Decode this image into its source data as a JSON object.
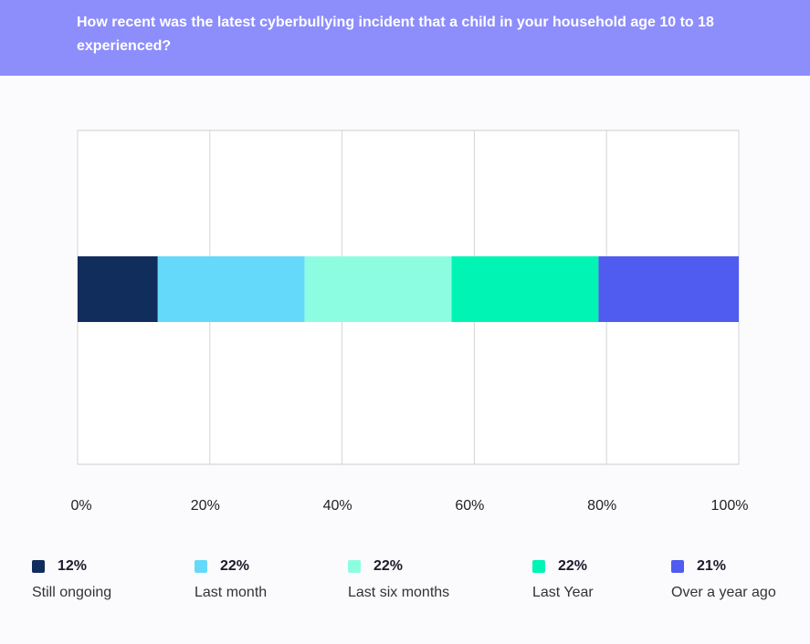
{
  "header": {
    "title": "How recent was the latest cyberbullying incident that a child in your household age 10 to 18 experienced?"
  },
  "colors": {
    "header": "#8d8efc"
  },
  "chart_data": {
    "type": "bar",
    "orientation": "horizontal-stacked",
    "title": "How recent was the latest cyberbullying incident that a child in your household age 10 to 18 experienced?",
    "xlim": [
      0,
      100
    ],
    "xticks": [
      "0%",
      "20%",
      "40%",
      "60%",
      "80%",
      "100%"
    ],
    "grid": true,
    "legend": "bottom",
    "series": [
      {
        "name": "Still ongoing",
        "value": 12,
        "label": "12%",
        "color": "#112d5c"
      },
      {
        "name": "Last month",
        "value": 22,
        "label": "22%",
        "color": "#64d9fa"
      },
      {
        "name": "Last six months",
        "value": 22,
        "label": "22%",
        "color": "#8dfde1"
      },
      {
        "name": "Last Year",
        "value": 22,
        "label": "22%",
        "color": "#00f5b4"
      },
      {
        "name": "Over a year ago",
        "value": 21,
        "label": "21%",
        "color": "#505bef"
      }
    ]
  }
}
